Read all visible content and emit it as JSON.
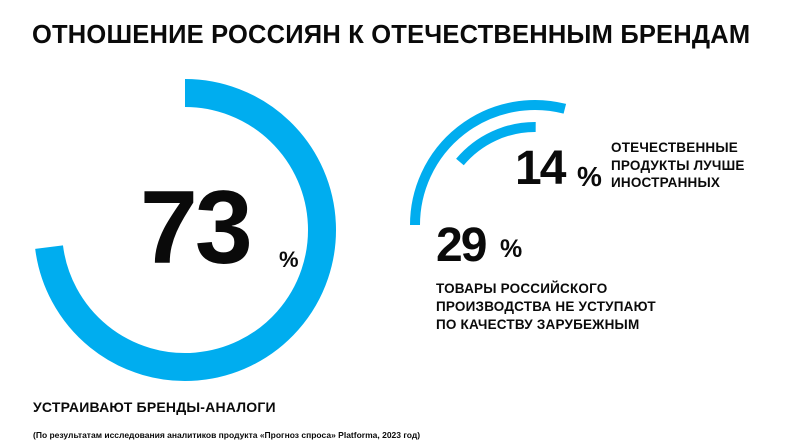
{
  "title": "ОТНОШЕНИЕ РОССИЯН К ОТЕЧЕСТВЕННЫМ БРЕНДАМ",
  "accent_color": "#00adef",
  "chart_data": [
    {
      "type": "pie",
      "value": 73,
      "value_text": "73",
      "unit": "%",
      "label": "УСТРАИВАЮТ БРЕНДЫ-АНАЛОГИ"
    },
    {
      "type": "pie",
      "series": [
        {
          "value": 14,
          "value_text": "14",
          "unit": "%",
          "label_lines": [
            "ОТЕЧЕСТВЕННЫЕ",
            "ПРОДУКТЫ ЛУЧШЕ",
            "ИНОСТРАННЫХ"
          ]
        },
        {
          "value": 29,
          "value_text": "29",
          "unit": "%",
          "label_lines": [
            "ТОВАРЫ РОССИЙСКОГО",
            "ПРОИЗВОДСТВА НЕ УСТУПАЮТ",
            "ПО КАЧЕСТВУ ЗАРУБЕЖНЫМ"
          ]
        }
      ]
    }
  ],
  "source": "(По результатам исследования аналитиков продукта «Прогноз спроса» Platforma, 2023 год)"
}
